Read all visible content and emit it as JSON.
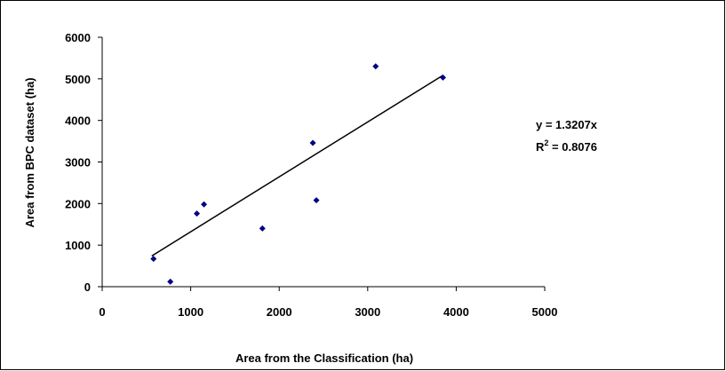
{
  "chart_data": {
    "type": "scatter",
    "xlabel": "Area from the Classification (ha)",
    "ylabel": "Area from BPC dataset (ha)",
    "xlim": [
      0,
      5000
    ],
    "ylim": [
      0,
      6000
    ],
    "x_ticks": [
      0,
      1000,
      2000,
      3000,
      4000,
      5000
    ],
    "y_ticks": [
      0,
      1000,
      2000,
      3000,
      4000,
      5000,
      6000
    ],
    "grid": false,
    "legend": "none",
    "marker_color": "#000080",
    "points": [
      {
        "x": 580,
        "y": 670
      },
      {
        "x": 770,
        "y": 120
      },
      {
        "x": 1070,
        "y": 1760
      },
      {
        "x": 1150,
        "y": 1980
      },
      {
        "x": 1810,
        "y": 1400
      },
      {
        "x": 2380,
        "y": 3460
      },
      {
        "x": 2420,
        "y": 2080
      },
      {
        "x": 3090,
        "y": 5300
      },
      {
        "x": 3850,
        "y": 5030
      }
    ],
    "trendline": {
      "x": [
        560,
        3850
      ],
      "y": [
        740,
        5085
      ]
    },
    "annotations": {
      "equation": "y = 1.3207x",
      "r2_prefix": "R",
      "r2_sup": "2",
      "r2_value": " = 0.8076"
    }
  }
}
